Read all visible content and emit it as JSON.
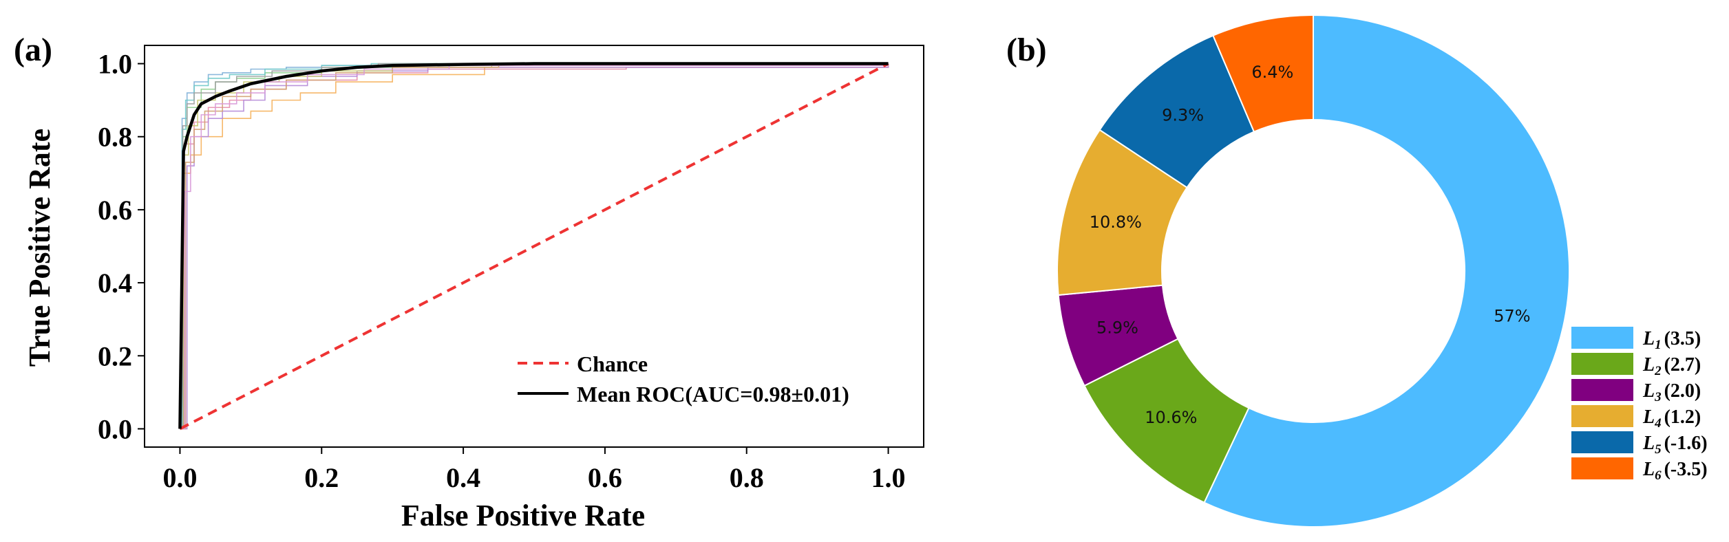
{
  "chart_data": [
    {
      "panel_label": "(a)",
      "type": "line",
      "xlabel": "False Positive Rate",
      "ylabel": "True Positive Rate",
      "xlim": [
        -0.05,
        1.05
      ],
      "ylim": [
        -0.05,
        1.05
      ],
      "xticks": [
        "0.0",
        "0.2",
        "0.4",
        "0.6",
        "0.8",
        "1.0"
      ],
      "yticks": [
        "0.0",
        "0.2",
        "0.4",
        "0.6",
        "0.8",
        "1.0"
      ],
      "legend_position": "bottom-right",
      "grid": false,
      "series": [
        {
          "name": "Chance",
          "color": "#ee3333",
          "style": "dashed",
          "x": [
            0,
            1
          ],
          "y": [
            0,
            1
          ]
        },
        {
          "name": "Mean ROC(AUC=0.98±0.01)",
          "color": "#000000",
          "style": "solid",
          "x": [
            0,
            0.005,
            0.01,
            0.02,
            0.03,
            0.05,
            0.07,
            0.1,
            0.15,
            0.2,
            0.25,
            0.3,
            0.4,
            0.5,
            1.0
          ],
          "y": [
            0,
            0.76,
            0.8,
            0.86,
            0.89,
            0.91,
            0.925,
            0.945,
            0.965,
            0.98,
            0.99,
            0.995,
            0.998,
            1.0,
            1.0
          ]
        }
      ],
      "fold_curves": [
        {
          "color": "#7fb0d8",
          "x": [
            0,
            0.003,
            0.01,
            0.02,
            0.04,
            0.06,
            0.1,
            0.15,
            0.2,
            0.3,
            1.0
          ],
          "y": [
            0,
            0.85,
            0.92,
            0.95,
            0.97,
            0.975,
            0.985,
            0.99,
            0.995,
            1.0,
            1.0
          ]
        },
        {
          "color": "#f5b05a",
          "x": [
            0,
            0.005,
            0.015,
            0.03,
            0.06,
            0.1,
            0.13,
            0.17,
            0.22,
            0.3,
            0.43,
            1.0
          ],
          "y": [
            0,
            0.7,
            0.75,
            0.8,
            0.85,
            0.87,
            0.9,
            0.92,
            0.95,
            0.97,
            0.99,
            1.0
          ]
        },
        {
          "color": "#8fcf8f",
          "x": [
            0,
            0.004,
            0.01,
            0.03,
            0.05,
            0.08,
            0.12,
            0.2,
            0.3,
            1.0
          ],
          "y": [
            0,
            0.8,
            0.88,
            0.93,
            0.95,
            0.96,
            0.975,
            0.99,
            1.0,
            1.0
          ]
        },
        {
          "color": "#e68ca8",
          "x": [
            0,
            0.006,
            0.02,
            0.04,
            0.07,
            0.1,
            0.15,
            0.25,
            0.35,
            0.63,
            1.0
          ],
          "y": [
            0,
            0.78,
            0.84,
            0.88,
            0.9,
            0.93,
            0.955,
            0.975,
            0.985,
            0.99,
            1.0
          ]
        },
        {
          "color": "#b48ad8",
          "x": [
            0,
            0.01,
            0.02,
            0.04,
            0.06,
            0.09,
            0.12,
            0.18,
            0.25,
            0.35,
            1.0
          ],
          "y": [
            0,
            0.72,
            0.8,
            0.85,
            0.87,
            0.9,
            0.94,
            0.965,
            0.98,
            0.99,
            1.0
          ]
        },
        {
          "color": "#6fc9c9",
          "x": [
            0,
            0.003,
            0.008,
            0.02,
            0.04,
            0.07,
            0.12,
            0.2,
            0.27,
            1.0
          ],
          "y": [
            0,
            0.82,
            0.9,
            0.94,
            0.96,
            0.97,
            0.985,
            0.995,
            1.0,
            1.0
          ]
        },
        {
          "color": "#c8c870",
          "x": [
            0,
            0.005,
            0.012,
            0.025,
            0.05,
            0.09,
            0.14,
            0.2,
            0.3,
            0.44,
            1.0
          ],
          "y": [
            0,
            0.75,
            0.83,
            0.9,
            0.92,
            0.95,
            0.965,
            0.98,
            0.99,
            0.995,
            1.0
          ]
        },
        {
          "color": "#d0a070",
          "x": [
            0,
            0.008,
            0.02,
            0.035,
            0.06,
            0.1,
            0.15,
            0.22,
            0.3,
            0.45,
            1.0
          ],
          "y": [
            0,
            0.73,
            0.82,
            0.87,
            0.91,
            0.93,
            0.955,
            0.975,
            0.99,
            0.998,
            1.0
          ]
        },
        {
          "color": "#a0a0a0",
          "x": [
            0,
            0.004,
            0.01,
            0.02,
            0.05,
            0.08,
            0.13,
            0.2,
            0.28,
            1.0
          ],
          "y": [
            0,
            0.83,
            0.89,
            0.92,
            0.95,
            0.965,
            0.98,
            0.99,
            1.0,
            1.0
          ]
        },
        {
          "color": "#d898d8",
          "x": [
            0,
            0.007,
            0.015,
            0.03,
            0.05,
            0.08,
            0.12,
            0.18,
            0.26,
            0.38,
            1.0
          ],
          "y": [
            0,
            0.65,
            0.8,
            0.86,
            0.89,
            0.92,
            0.95,
            0.97,
            0.985,
            0.995,
            1.0
          ]
        }
      ]
    },
    {
      "panel_label": "(b)",
      "type": "pie",
      "donut": true,
      "legend_position": "bottom-right",
      "slices": [
        {
          "label": "57%",
          "value": 57.0,
          "color": "#4dbbff",
          "legend": {
            "sym": "L",
            "sub": "1",
            "val": "(3.5)"
          }
        },
        {
          "label": "10.6%",
          "value": 10.6,
          "color": "#6aa81a",
          "legend": {
            "sym": "L",
            "sub": "2",
            "val": "(2.7)"
          }
        },
        {
          "label": "5.9%",
          "value": 5.9,
          "color": "#800080",
          "legend": {
            "sym": "L",
            "sub": "3",
            "val": "(2.0)"
          }
        },
        {
          "label": "10.8%",
          "value": 10.8,
          "color": "#e6ad30",
          "legend": {
            "sym": "L",
            "sub": "4",
            "val": "(1.2)"
          }
        },
        {
          "label": "9.3%",
          "value": 9.3,
          "color": "#0a69aa",
          "legend": {
            "sym": "L",
            "sub": "5",
            "val": "(-1.6)"
          }
        },
        {
          "label": "6.4%",
          "value": 6.4,
          "color": "#ff6600",
          "legend": {
            "sym": "L",
            "sub": "6",
            "val": "(-3.5)"
          }
        }
      ]
    }
  ]
}
